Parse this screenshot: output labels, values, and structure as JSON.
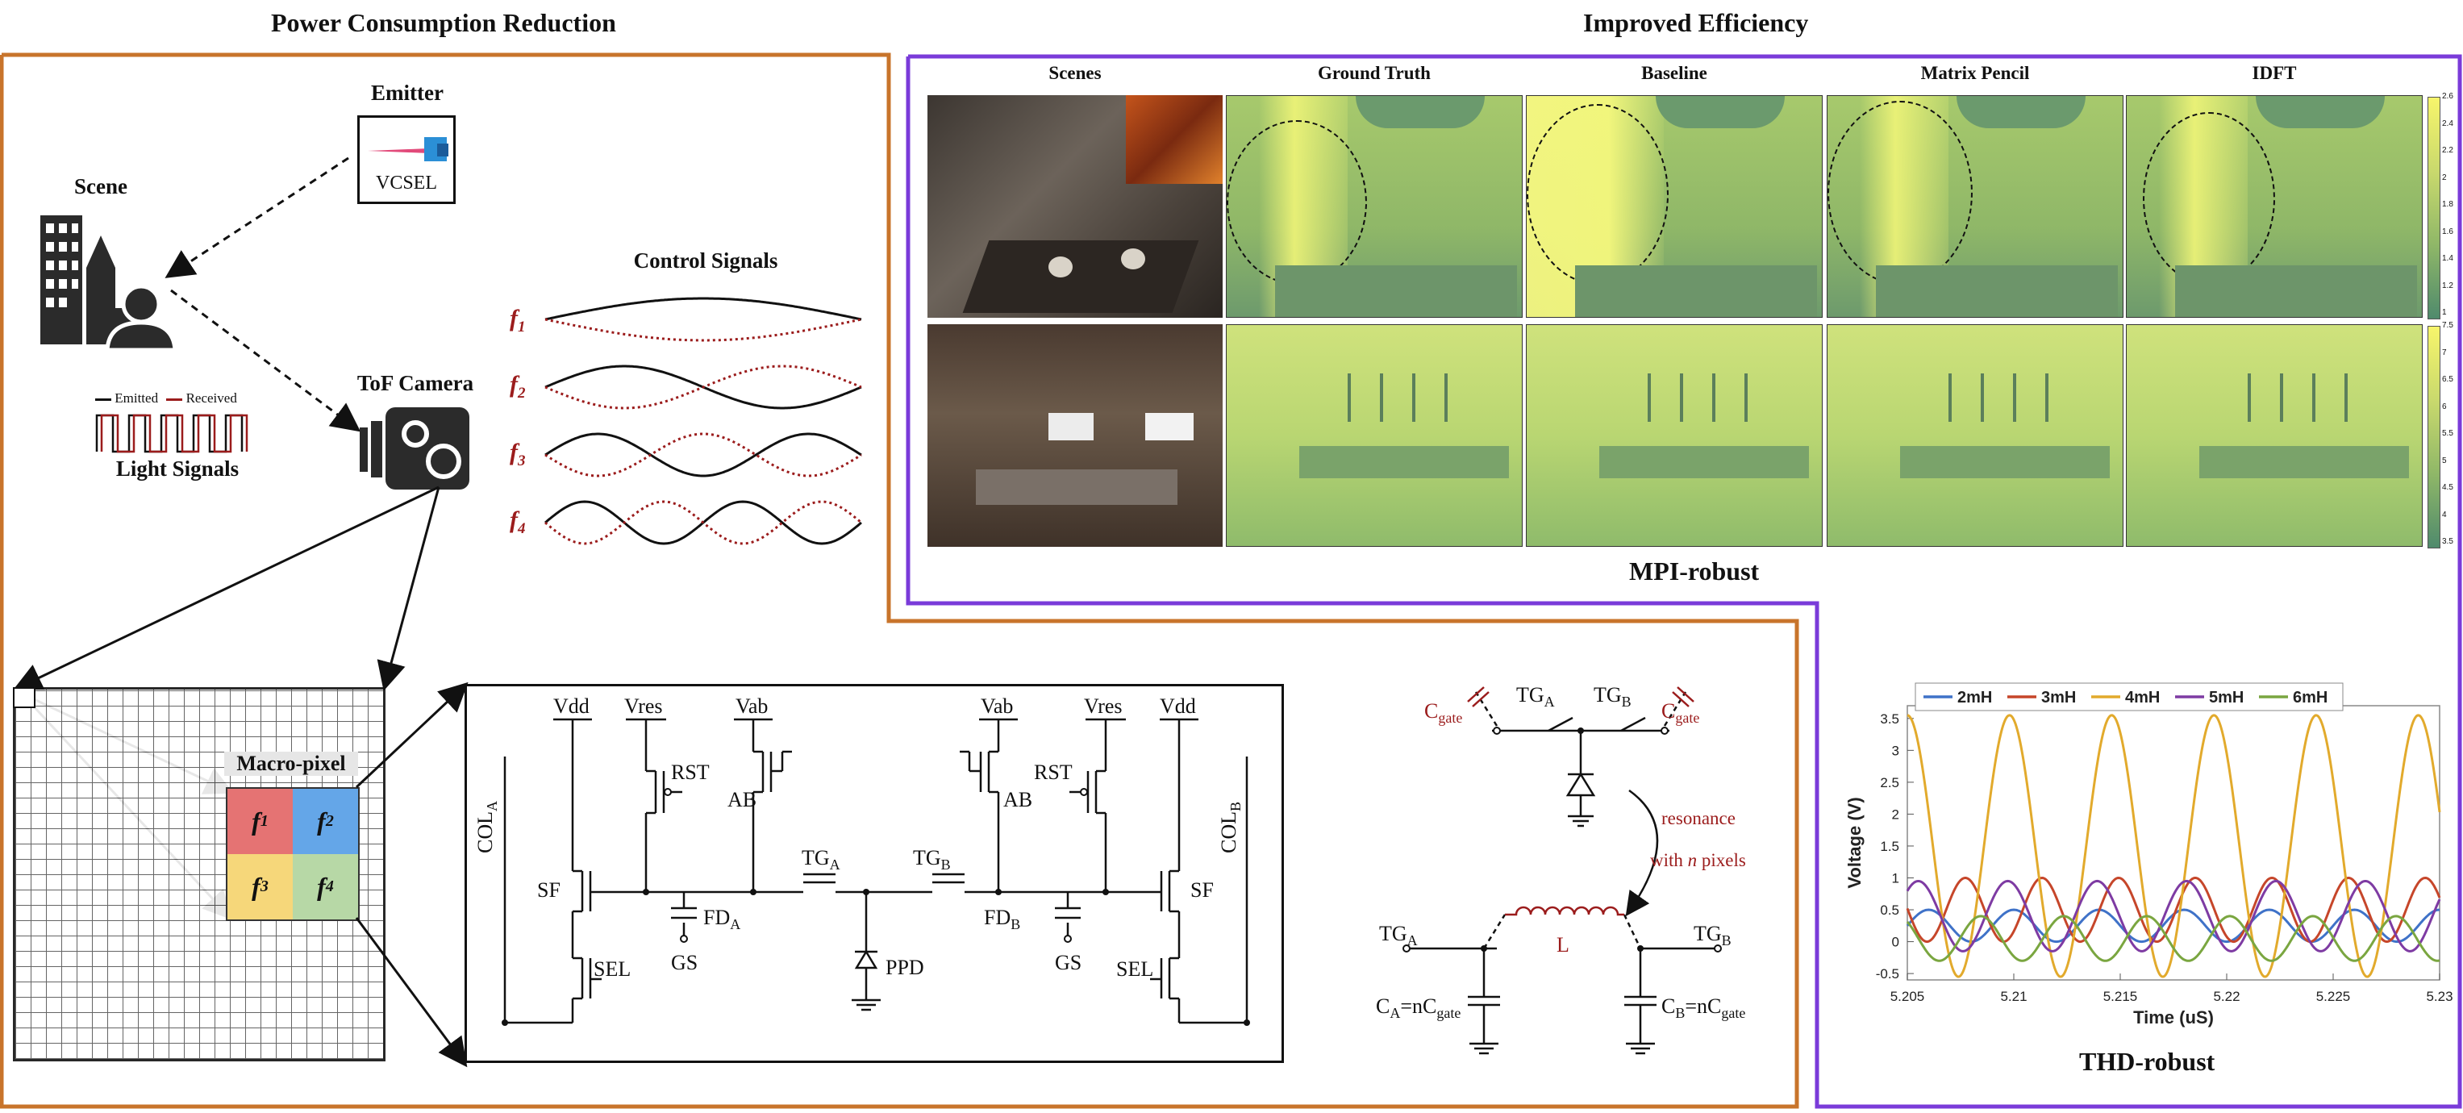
{
  "headers": {
    "power": "Power Consumption Reduction",
    "efficiency": "Improved Efficiency"
  },
  "left_panel": {
    "emitter": "Emitter",
    "vcsel": "VCSEL",
    "scene": "Scene",
    "tof_camera": "ToF Camera",
    "control_signals": "Control Signals",
    "legend_emitted": "Emitted",
    "legend_received": "Received",
    "light_signals": "Light Signals",
    "freq_labels": [
      "f",
      "f",
      "f",
      "f"
    ],
    "freq_subs": [
      "1",
      "2",
      "3",
      "4"
    ],
    "macro_pixel": "Macro-pixel"
  },
  "circuit": {
    "vdd": "Vdd",
    "vres": "Vres",
    "vab": "Vab",
    "rst": "RST",
    "ab": "AB",
    "sf": "SF",
    "sel": "SEL",
    "gs": "GS",
    "ppd": "PPD",
    "col": "COL",
    "tg": "TG",
    "fd": "FD",
    "sub_a": "A",
    "sub_b": "B"
  },
  "resonance": {
    "cgate": "C",
    "cgate_sub": "gate",
    "resonance": "resonance",
    "with_n": "with",
    "n": "n",
    "pixels": "pixels",
    "l": "L",
    "ca_eq": "C",
    "eq_n": "=nC",
    "cb_eq": "C"
  },
  "mpi": {
    "columns": [
      "Scenes",
      "Ground Truth",
      "Baseline",
      "Matrix Pencil",
      "IDFT"
    ],
    "title": "MPI-robust",
    "colorbar_top": [
      "2.6",
      "2.4",
      "2.2",
      "2",
      "1.8",
      "1.6",
      "1.4",
      "1.2",
      "1"
    ],
    "colorbar_bottom": [
      "7.5",
      "7",
      "6.5",
      "6",
      "5.5",
      "5",
      "4.5",
      "4",
      "3.5"
    ]
  },
  "thd": {
    "title": "THD-robust",
    "chart_data": {
      "type": "line",
      "xlabel": "Time (uS)",
      "ylabel": "Voltage (V)",
      "xlim": [
        5.205,
        5.23
      ],
      "ylim": [
        -0.6,
        3.7
      ],
      "x_ticks": [
        "5.205",
        "5.21",
        "5.215",
        "5.22",
        "5.225",
        "5.23"
      ],
      "y_ticks": [
        "3.5",
        "3",
        "2.5",
        "2",
        "1.5",
        "1",
        "0.5",
        "0",
        "-0.5"
      ],
      "legend_placement": "top",
      "series": [
        {
          "name": "2mH",
          "color": "#3f72c8",
          "offset": 0.25,
          "amplitude": 0.25,
          "period": 0.004,
          "phase": 0.0
        },
        {
          "name": "3mH",
          "color": "#c6462a",
          "offset": 0.5,
          "amplitude": 0.5,
          "period": 0.0036,
          "phase": 3.1
        },
        {
          "name": "4mH",
          "color": "#e2aa2c",
          "offset": 1.5,
          "amplitude": 2.05,
          "period": 0.0048,
          "phase": 1.57
        },
        {
          "name": "5mH",
          "color": "#7e3ba3",
          "offset": 0.4,
          "amplitude": 0.55,
          "period": 0.0042,
          "phase": 0.8
        },
        {
          "name": "6mH",
          "color": "#7aa640",
          "offset": 0.05,
          "amplitude": 0.35,
          "period": 0.0039,
          "phase": 2.3
        }
      ]
    }
  },
  "colors": {
    "power_border": "#c8742b",
    "efficiency_border": "#7a3bd9",
    "signal_red": "#9b1c1c",
    "macro_f1": "#e57373",
    "macro_f2": "#64a6e8",
    "macro_f3": "#f6d77a",
    "macro_f4": "#b7d8a6"
  },
  "icons": [
    "building-icon",
    "person-icon",
    "camera-icon",
    "laser-icon",
    "photodiode-icon",
    "inductor-icon"
  ]
}
